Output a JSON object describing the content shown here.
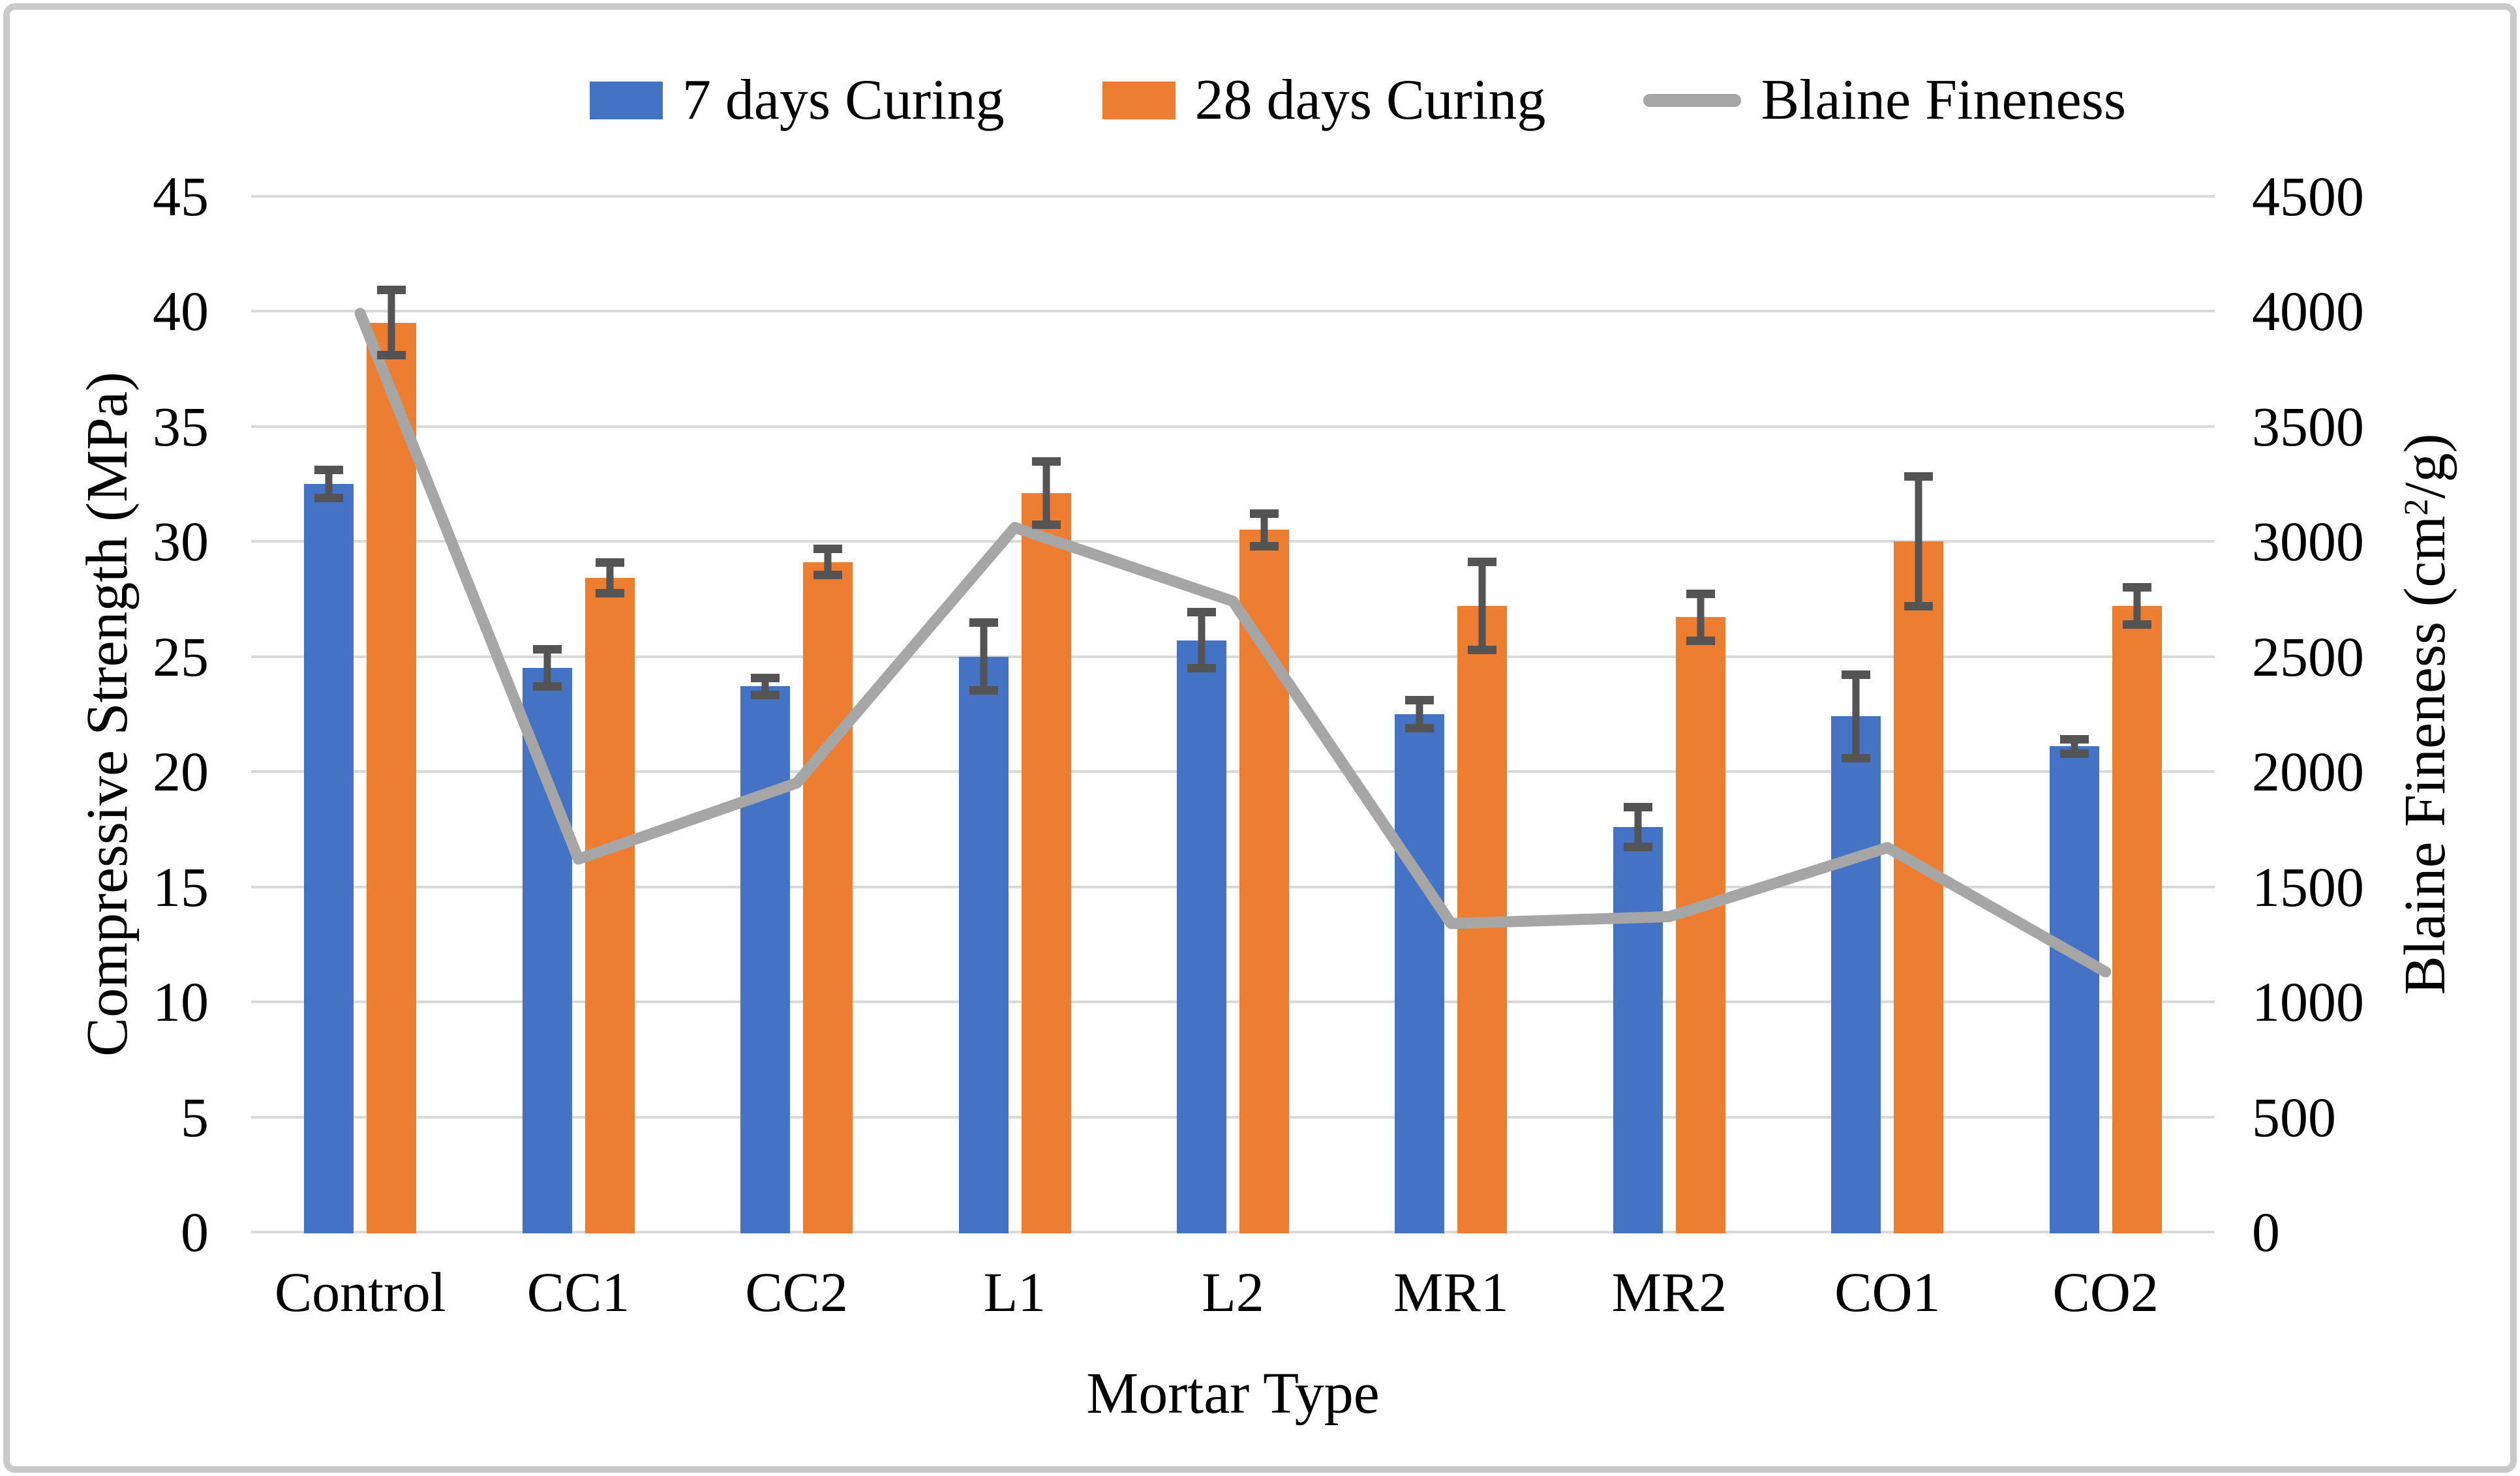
{
  "legend": {
    "items": [
      {
        "label": "7 days Curing",
        "swatch": "blue-rect",
        "color": "#4472C4"
      },
      {
        "label": "28 days Curing",
        "swatch": "orange-rect",
        "color": "#ED7D31"
      },
      {
        "label": "Blaine Fineness",
        "swatch": "gray-line",
        "color": "#A6A6A6"
      }
    ]
  },
  "chart_data": {
    "type": "bar+line-combo",
    "categories": [
      "Control",
      "CC1",
      "CC2",
      "L1",
      "L2",
      "MR1",
      "MR2",
      "CO1",
      "CO2"
    ],
    "series": [
      {
        "name": "7 days Curing",
        "type": "bar",
        "axis": "left",
        "color": "#4472C4",
        "values": [
          32.5,
          24.5,
          23.7,
          25.0,
          25.7,
          22.5,
          17.6,
          22.4,
          21.1
        ],
        "errors": [
          0.8,
          1.0,
          0.55,
          1.65,
          1.4,
          0.8,
          1.05,
          2.0,
          0.5
        ]
      },
      {
        "name": "28 days Curing",
        "type": "bar",
        "axis": "left",
        "color": "#ED7D31",
        "values": [
          39.5,
          28.4,
          29.1,
          32.1,
          30.5,
          27.2,
          26.7,
          30.0,
          27.2
        ],
        "errors": [
          1.6,
          0.85,
          0.75,
          1.55,
          0.9,
          2.1,
          1.2,
          3.0,
          1.0
        ]
      },
      {
        "name": "Blaine Fineness",
        "type": "line",
        "axis": "right",
        "color": "#A6A6A6",
        "values": [
          3990,
          1620,
          1950,
          3060,
          2740,
          1340,
          1370,
          1670,
          1130
        ]
      }
    ],
    "left_axis": {
      "title": "Compressive Strength (MPa)",
      "min": 0,
      "max": 45,
      "step": 5,
      "ticks": [
        "0",
        "5",
        "10",
        "15",
        "20",
        "25",
        "30",
        "35",
        "40",
        "45"
      ]
    },
    "right_axis": {
      "title": "Blaine Fineness (cm2/g)",
      "title_parts": {
        "pre": "Blaine Fineness (cm",
        "sup": "2",
        "post": "/g)"
      },
      "min": 0,
      "max": 4500,
      "step": 500,
      "ticks": [
        "0",
        "500",
        "1000",
        "1500",
        "2000",
        "2500",
        "3000",
        "3500",
        "4000",
        "4500"
      ]
    },
    "x_axis": {
      "title": "Mortar Type"
    },
    "grid": true,
    "legend_position": "top",
    "error_bar_color": "#545454",
    "gridline_color": "#D9D9D9"
  }
}
